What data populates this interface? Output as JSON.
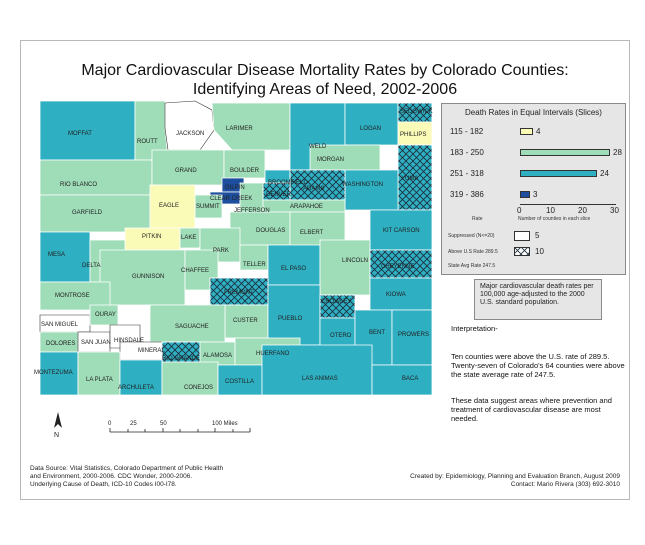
{
  "title_line1": "Major Cardiovascular Disease Mortality Rates by Colorado Counties:",
  "title_line2": "Identifying Areas of Need, 2002-2006",
  "legend": {
    "title": "Death Rates in Equal Intervals (Slices)",
    "classes": [
      {
        "range": "115 - 182",
        "count": 4,
        "color": "#fbfbb8"
      },
      {
        "range": "183 - 250",
        "count": 28,
        "color": "#9fdcb8"
      },
      {
        "range": "251 - 318",
        "count": 24,
        "color": "#2eafc2"
      },
      {
        "range": "319 - 386",
        "count": 3,
        "color": "#1d4f9e"
      }
    ],
    "axis_ticks": [
      "0",
      "10",
      "20",
      "30"
    ],
    "axis_max": 30,
    "rate_label": "Rate",
    "count_label": "Number of counties in each slice",
    "suppressed_label": "Suppressed (N<=20)",
    "suppressed_count": "5",
    "above_us_label": "Above U.S Rate 289.5",
    "above_us_count": "10",
    "state_avg_label": "State Avg Rate 247.5"
  },
  "note": "Major cardiovascular death rates per 100,000 age-adjusted to the 2000 U.S. standard population.",
  "interpretation": {
    "heading": "Interpretation-",
    "p1": "Ten counties were above the U.S. rate of 289.5. Twenty-seven of Colorado's 64 counties were above the state average rate of 247.5.",
    "p2": "These data suggest areas where prevention and treatment of cardiovascular disease are most needed."
  },
  "scale": {
    "ticks": [
      "0",
      "25",
      "50",
      "100 Miles"
    ]
  },
  "north_label": "N",
  "footer_left": [
    "Data Source: Vital Statistics, Colorado Department of Public Health",
    "and Environment, 2000-2006. CDC Wonder, 2000-2006.",
    "Underlying Cause of Death, ICD-10 Codes I00-I78."
  ],
  "footer_right": [
    "Created by: Epidemiology, Planning and Evaluation Branch, August 2009",
    "Contact: Mario Rivera (303) 692-3010"
  ],
  "counties": [
    {
      "name": "MOFFAT"
    },
    {
      "name": "ROUTT"
    },
    {
      "name": "JACKSON"
    },
    {
      "name": "LARIMER"
    },
    {
      "name": "LOGAN"
    },
    {
      "name": "SEDGWICK"
    },
    {
      "name": "PHILLIPS"
    },
    {
      "name": "WELD"
    },
    {
      "name": "MORGAN"
    },
    {
      "name": "YUMA"
    },
    {
      "name": "GRAND"
    },
    {
      "name": "BOULDER"
    },
    {
      "name": "BROOMFIELD"
    },
    {
      "name": "ADAMS"
    },
    {
      "name": "WASHINGTON"
    },
    {
      "name": "RIO BLANCO"
    },
    {
      "name": "GILPIN"
    },
    {
      "name": "DENVER"
    },
    {
      "name": "GARFIELD"
    },
    {
      "name": "EAGLE"
    },
    {
      "name": "SUMMIT"
    },
    {
      "name": "CLEAR CREEK"
    },
    {
      "name": "JEFFERSON"
    },
    {
      "name": "ARAPAHOE"
    },
    {
      "name": "PITKIN"
    },
    {
      "name": "LAKE"
    },
    {
      "name": "DOUGLAS"
    },
    {
      "name": "ELBERT"
    },
    {
      "name": "KIT CARSON"
    },
    {
      "name": "MESA"
    },
    {
      "name": "DELTA"
    },
    {
      "name": "PARK"
    },
    {
      "name": "TELLER"
    },
    {
      "name": "LINCOLN"
    },
    {
      "name": "CHEYENNE"
    },
    {
      "name": "GUNNISON"
    },
    {
      "name": "CHAFFEE"
    },
    {
      "name": "EL PASO"
    },
    {
      "name": "MONTROSE"
    },
    {
      "name": "FREMONT"
    },
    {
      "name": "KIOWA"
    },
    {
      "name": "CROWLEY"
    },
    {
      "name": "SAN MIGUEL"
    },
    {
      "name": "OURAY"
    },
    {
      "name": "SAGUACHE"
    },
    {
      "name": "CUSTER"
    },
    {
      "name": "PUEBLO"
    },
    {
      "name": "DOLORES"
    },
    {
      "name": "SAN JUAN"
    },
    {
      "name": "HINSDALE"
    },
    {
      "name": "OTERO"
    },
    {
      "name": "BENT"
    },
    {
      "name": "PROWERS"
    },
    {
      "name": "MINERAL"
    },
    {
      "name": "RIO GRANDE"
    },
    {
      "name": "ALAMOSA"
    },
    {
      "name": "HUERFANO"
    },
    {
      "name": "MONTEZUMA"
    },
    {
      "name": "LA PLATA"
    },
    {
      "name": "ARCHULETA"
    },
    {
      "name": "CONEJOS"
    },
    {
      "name": "COSTILLA"
    },
    {
      "name": "LAS ANIMAS"
    },
    {
      "name": "BACA"
    }
  ]
}
